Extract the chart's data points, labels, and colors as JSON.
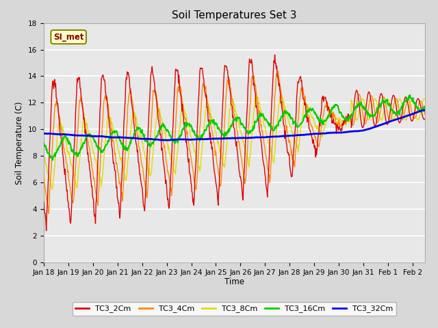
{
  "title": "Soil Temperatures Set 3",
  "xlabel": "Time",
  "ylabel": "Soil Temperature (C)",
  "ylim": [
    0,
    18
  ],
  "yticks": [
    0,
    2,
    4,
    6,
    8,
    10,
    12,
    14,
    16,
    18
  ],
  "legend_label": "SI_met",
  "series_colors": {
    "TC3_2Cm": "#dd0000",
    "TC3_4Cm": "#ff8800",
    "TC3_8Cm": "#dddd00",
    "TC3_16Cm": "#00cc00",
    "TC3_32Cm": "#0000ee"
  },
  "bg_color": "#d8d8d8",
  "plot_bg_color": "#e8e8e8",
  "grid_color": "#ffffff",
  "annotation_bg": "#ffffcc",
  "annotation_border": "#888800",
  "figsize": [
    6.4,
    4.8
  ],
  "dpi": 100
}
